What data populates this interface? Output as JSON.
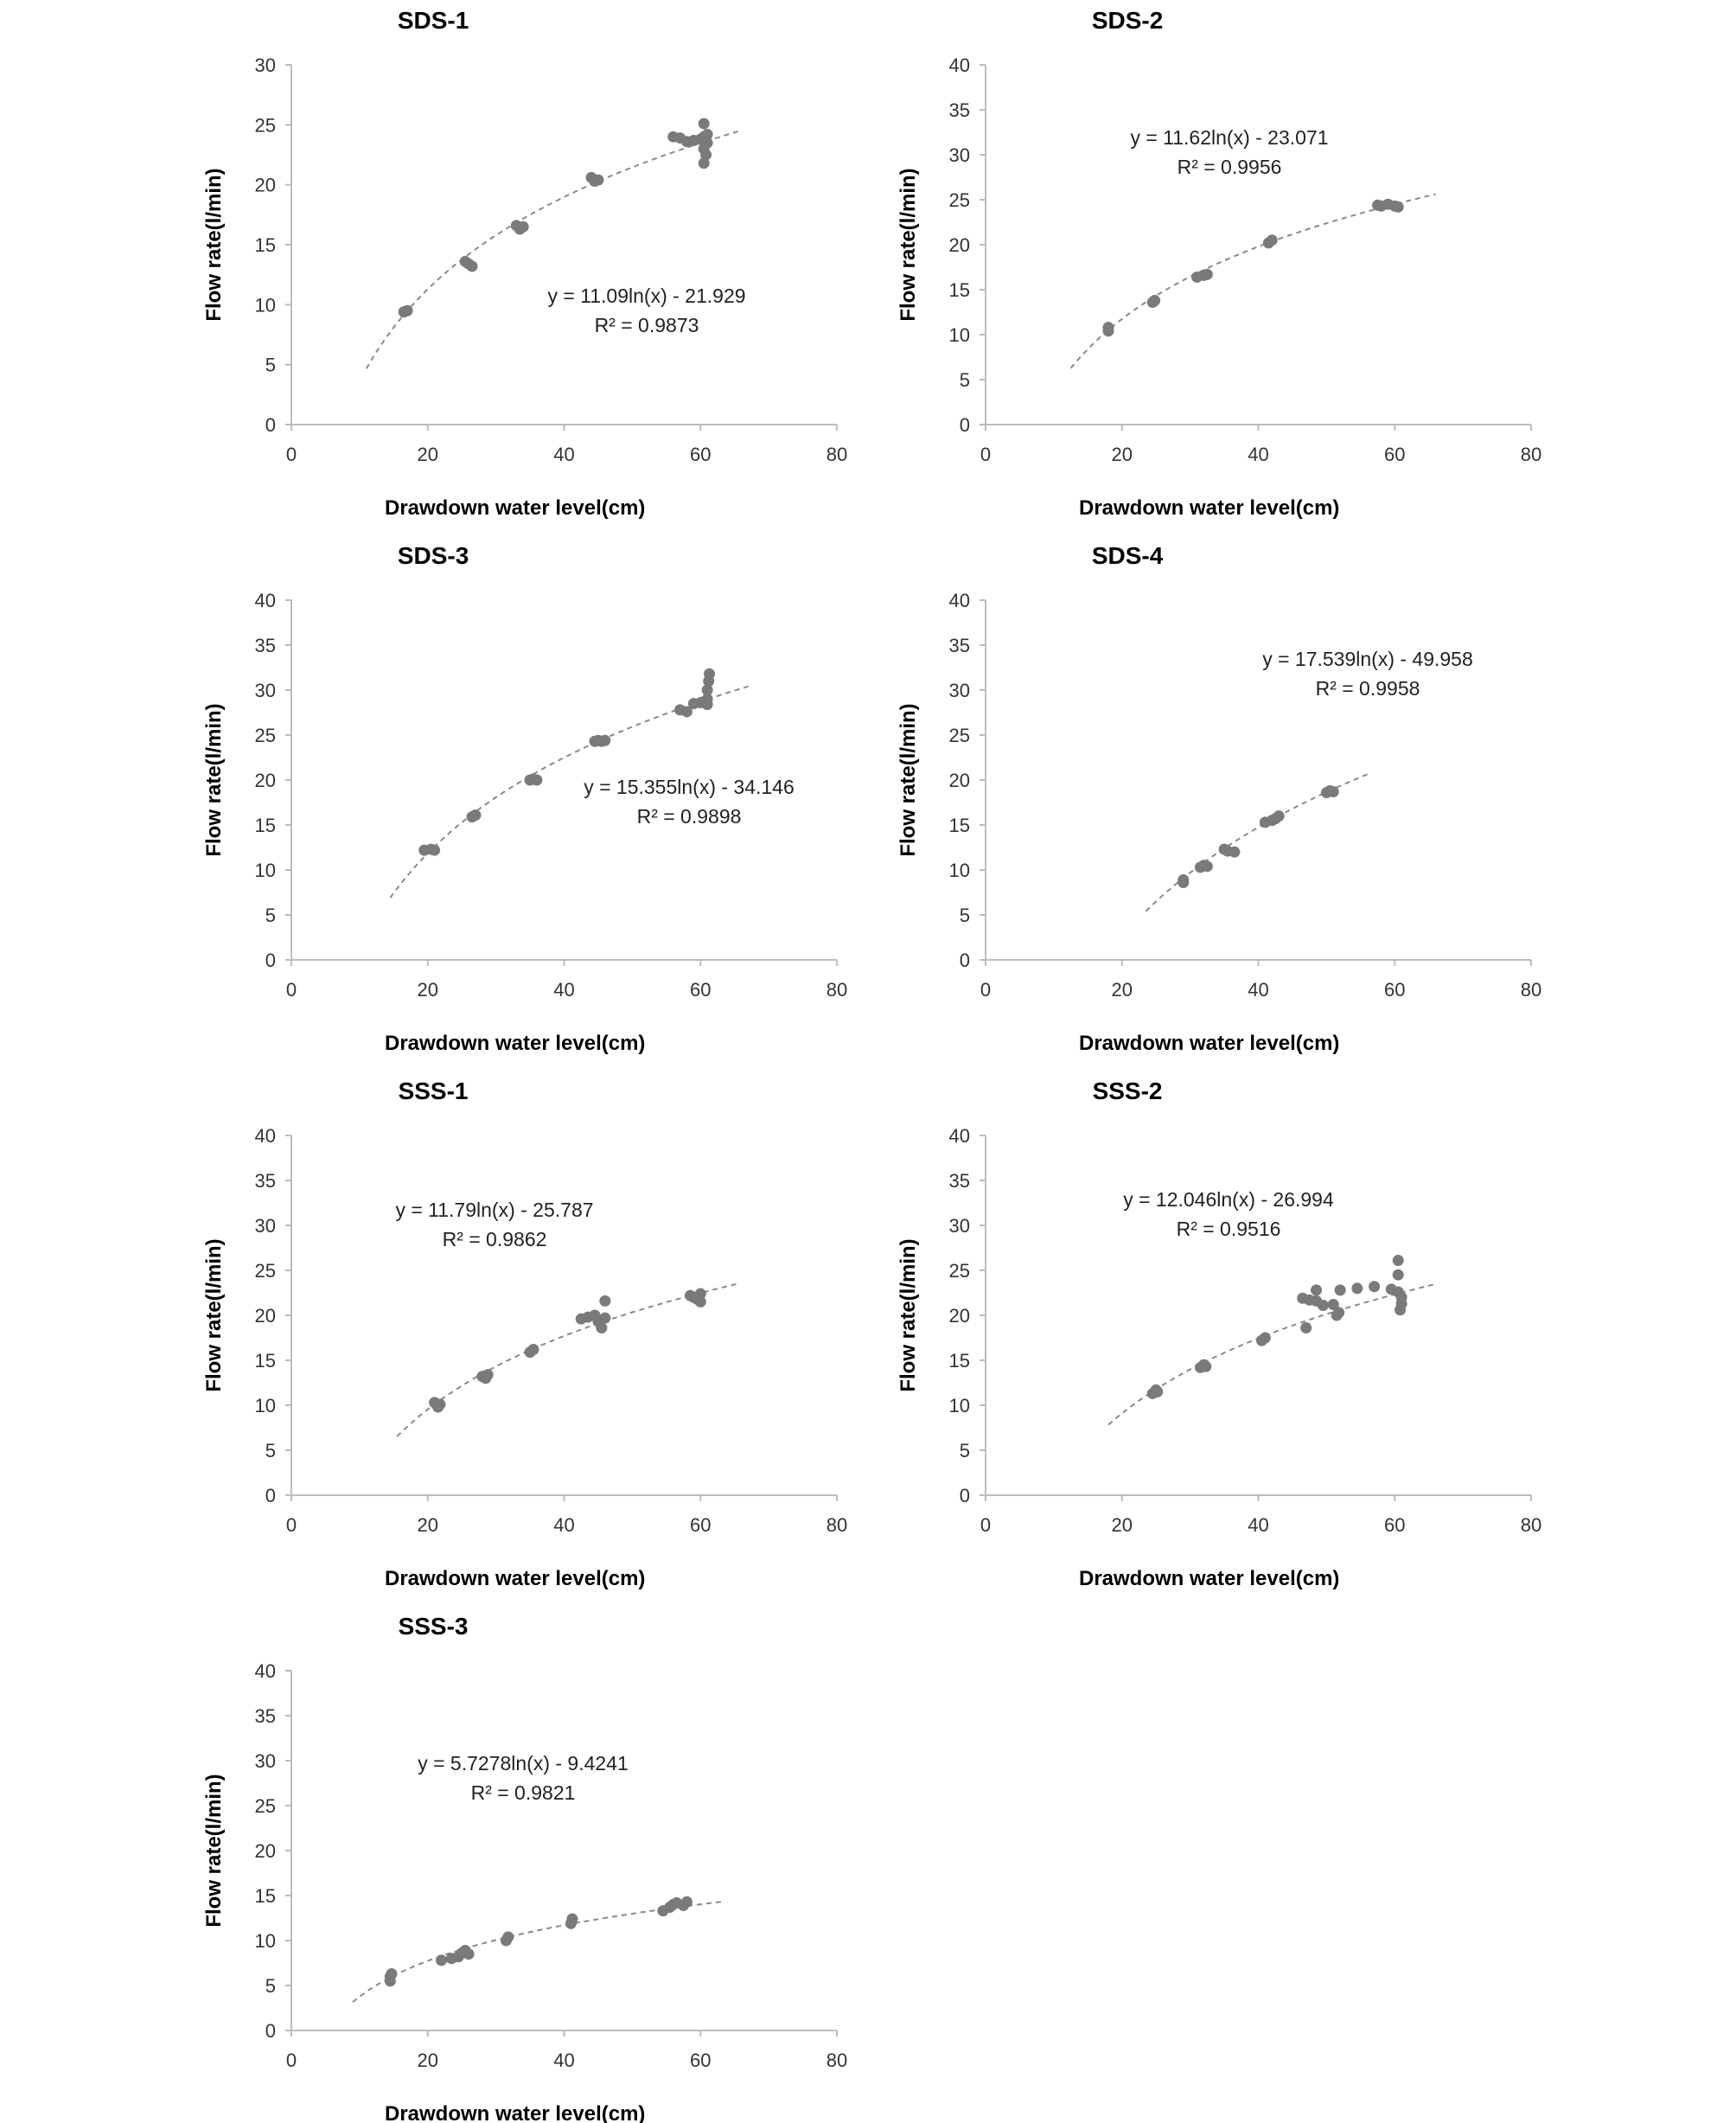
{
  "chart_data": [
    {
      "type": "scatter",
      "title": "SDS-1",
      "xlabel": "Drawdown water level(cm)",
      "ylabel": "Flow rate(l/min)",
      "xlim": [
        0,
        80
      ],
      "ylim": [
        0,
        30
      ],
      "xticks": [
        "0",
        "20",
        "40",
        "60",
        "80"
      ],
      "yticks": [
        "0",
        "5",
        "10",
        "15",
        "20",
        "25",
        "30"
      ],
      "equation": "y = 11.09ln(x) - 21.929",
      "r2": "R² = 0.9873",
      "trend": {
        "a": 11.09,
        "b": -21.929,
        "x_range": [
          11,
          66
        ]
      },
      "points": [
        [
          17,
          9.5
        ],
        [
          16.5,
          9.4
        ],
        [
          25.5,
          13.6
        ],
        [
          26,
          13.4
        ],
        [
          26.5,
          13.2
        ],
        [
          33,
          16.6
        ],
        [
          33.5,
          16.3
        ],
        [
          34,
          16.5
        ],
        [
          44,
          20.6
        ],
        [
          44.5,
          20.3
        ],
        [
          45,
          20.4
        ],
        [
          56,
          24
        ],
        [
          57,
          23.9
        ],
        [
          58,
          23.6
        ],
        [
          59,
          23.7
        ],
        [
          60,
          23.8
        ],
        [
          60.5,
          24
        ],
        [
          61,
          24.2
        ],
        [
          60.5,
          25.1
        ],
        [
          60.5,
          23
        ],
        [
          60.8,
          22.5
        ],
        [
          60.5,
          21.8
        ],
        [
          61,
          23.5
        ]
      ],
      "grid": false
    },
    {
      "type": "scatter",
      "title": "SDS-2",
      "xlabel": "Drawdown water level(cm)",
      "ylabel": "Flow rate(l/min)",
      "xlim": [
        0,
        80
      ],
      "ylim": [
        0,
        40
      ],
      "xticks": [
        "0",
        "20",
        "40",
        "60",
        "80"
      ],
      "yticks": [
        "0",
        "5",
        "10",
        "15",
        "20",
        "25",
        "30",
        "35",
        "40"
      ],
      "equation": "y = 11.62ln(x) - 23.071",
      "r2": "R² = 0.9956",
      "trend": {
        "a": 11.62,
        "b": -23.071,
        "x_range": [
          12.5,
          66
        ]
      },
      "points": [
        [
          18,
          10.4
        ],
        [
          18,
          10.8
        ],
        [
          24.5,
          13.6
        ],
        [
          24.8,
          13.8
        ],
        [
          31,
          16.4
        ],
        [
          32,
          16.6
        ],
        [
          32.5,
          16.7
        ],
        [
          41.5,
          20.2
        ],
        [
          42,
          20.5
        ],
        [
          57.5,
          24.4
        ],
        [
          58,
          24.3
        ],
        [
          59,
          24.5
        ],
        [
          60,
          24.3
        ],
        [
          60.5,
          24.2
        ]
      ],
      "grid": false
    },
    {
      "type": "scatter",
      "title": "SDS-3",
      "xlabel": "Drawdown water level(cm)",
      "ylabel": "Flow rate(l/min)",
      "xlim": [
        0,
        80
      ],
      "ylim": [
        0,
        40
      ],
      "xticks": [
        "0",
        "20",
        "40",
        "60",
        "80"
      ],
      "yticks": [
        "0",
        "5",
        "10",
        "15",
        "20",
        "25",
        "30",
        "35",
        "40"
      ],
      "equation": "y = 15.355ln(x) - 34.146",
      "r2": "R² = 0.9898",
      "trend": {
        "a": 15.355,
        "b": -34.146,
        "x_range": [
          14.5,
          67
        ]
      },
      "points": [
        [
          19.5,
          12.2
        ],
        [
          20.5,
          12.3
        ],
        [
          21,
          12.2
        ],
        [
          26.5,
          15.9
        ],
        [
          27,
          16.1
        ],
        [
          35,
          20
        ],
        [
          35.5,
          20.1
        ],
        [
          36,
          20
        ],
        [
          44.5,
          24.3
        ],
        [
          45,
          24.4
        ],
        [
          45.5,
          24.3
        ],
        [
          46,
          24.4
        ],
        [
          57,
          27.8
        ],
        [
          58,
          27.6
        ],
        [
          59,
          28.5
        ],
        [
          60,
          28.6
        ],
        [
          60.5,
          28.7
        ],
        [
          61,
          29
        ],
        [
          61,
          30
        ],
        [
          61.2,
          31
        ],
        [
          61.3,
          31.8
        ],
        [
          61,
          28.4
        ]
      ],
      "grid": false
    },
    {
      "type": "scatter",
      "title": "SDS-4",
      "xlabel": "Drawdown water level(cm)",
      "ylabel": "Flow rate(l/min)",
      "xlim": [
        0,
        80
      ],
      "ylim": [
        0,
        40
      ],
      "xticks": [
        "0",
        "20",
        "40",
        "60",
        "80"
      ],
      "yticks": [
        "0",
        "5",
        "10",
        "15",
        "20",
        "25",
        "30",
        "35",
        "40"
      ],
      "equation": "y = 17.539ln(x) - 49.958",
      "r2": "R² = 0.9958",
      "trend": {
        "a": 17.539,
        "b": -49.958,
        "x_range": [
          23.5,
          56.5
        ]
      },
      "points": [
        [
          29,
          8.6
        ],
        [
          29,
          8.9
        ],
        [
          31.5,
          10.3
        ],
        [
          32,
          10.5
        ],
        [
          32.5,
          10.4
        ],
        [
          35,
          12.3
        ],
        [
          35.5,
          12.1
        ],
        [
          36.5,
          12
        ],
        [
          41,
          15.3
        ],
        [
          42,
          15.5
        ],
        [
          42.5,
          15.7
        ],
        [
          43,
          16
        ],
        [
          50,
          18.6
        ],
        [
          50.5,
          18.8
        ],
        [
          51,
          18.7
        ]
      ],
      "grid": false
    },
    {
      "type": "scatter",
      "title": "SSS-1",
      "xlabel": "Drawdown water level(cm)",
      "ylabel": "Flow rate(l/min)",
      "xlim": [
        0,
        80
      ],
      "ylim": [
        0,
        40
      ],
      "xticks": [
        "0",
        "20",
        "40",
        "60",
        "80"
      ],
      "yticks": [
        "0",
        "5",
        "10",
        "15",
        "20",
        "25",
        "30",
        "35",
        "40"
      ],
      "equation": "y = 11.79ln(x) - 25.787",
      "r2": "R² = 0.9862",
      "trend": {
        "a": 11.79,
        "b": -25.787,
        "x_range": [
          15.5,
          65.5
        ]
      },
      "points": [
        [
          21,
          10.3
        ],
        [
          21.5,
          9.8
        ],
        [
          21.8,
          10.1
        ],
        [
          28,
          13.2
        ],
        [
          28.5,
          13
        ],
        [
          28.8,
          13.4
        ],
        [
          35,
          15.9
        ],
        [
          35.5,
          16.2
        ],
        [
          42.5,
          19.6
        ],
        [
          43.5,
          19.8
        ],
        [
          44.5,
          20
        ],
        [
          45,
          19.3
        ],
        [
          45.5,
          18.6
        ],
        [
          46,
          19.7
        ],
        [
          46,
          21.6
        ],
        [
          58.5,
          22.2
        ],
        [
          59,
          22
        ],
        [
          59.5,
          21.8
        ],
        [
          60,
          22.4
        ],
        [
          60,
          21.5
        ]
      ],
      "grid": false
    },
    {
      "type": "scatter",
      "title": "SSS-2",
      "xlabel": "Drawdown water level(cm)",
      "ylabel": "Flow rate(l/min)",
      "xlim": [
        0,
        80
      ],
      "ylim": [
        0,
        40
      ],
      "xticks": [
        "0",
        "20",
        "40",
        "60",
        "80"
      ],
      "yticks": [
        "0",
        "5",
        "10",
        "15",
        "20",
        "25",
        "30",
        "35",
        "40"
      ],
      "equation": "y = 12.046ln(x) - 26.994",
      "r2": "R² = 0.9516",
      "trend": {
        "a": 12.046,
        "b": -26.994,
        "x_range": [
          18,
          66
        ]
      },
      "points": [
        [
          24.5,
          11.3
        ],
        [
          25,
          11.7
        ],
        [
          25.2,
          11.5
        ],
        [
          31.5,
          14.2
        ],
        [
          32,
          14.5
        ],
        [
          32.3,
          14.3
        ],
        [
          40.5,
          17.2
        ],
        [
          41,
          17.5
        ],
        [
          46.5,
          21.9
        ],
        [
          47.5,
          21.7
        ],
        [
          47,
          18.6
        ],
        [
          48.5,
          21.6
        ],
        [
          48.5,
          22.8
        ],
        [
          49.5,
          21.1
        ],
        [
          51,
          21.2
        ],
        [
          51.5,
          20
        ],
        [
          51.8,
          20.3
        ],
        [
          52,
          22.8
        ],
        [
          54.5,
          23
        ],
        [
          57,
          23.2
        ],
        [
          59.5,
          22.9
        ],
        [
          60.5,
          26.1
        ],
        [
          60.5,
          24.5
        ],
        [
          60.5,
          22.6
        ],
        [
          61,
          22
        ],
        [
          61,
          21.3
        ],
        [
          60.8,
          20.6
        ]
      ],
      "grid": false
    },
    {
      "type": "scatter",
      "title": "SSS-3",
      "xlabel": "Drawdown water level(cm)",
      "ylabel": "Flow rate(l/min)",
      "xlim": [
        0,
        80
      ],
      "ylim": [
        0,
        40
      ],
      "xticks": [
        "0",
        "20",
        "40",
        "60",
        "80"
      ],
      "yticks": [
        "0",
        "5",
        "10",
        "15",
        "20",
        "25",
        "30",
        "35",
        "40"
      ],
      "equation": "y = 5.7278ln(x) - 9.4241",
      "r2": "R² = 0.9821",
      "trend": {
        "a": 5.7278,
        "b": -9.4241,
        "x_range": [
          9,
          63
        ]
      },
      "points": [
        [
          14.5,
          5.5
        ],
        [
          14.5,
          6
        ],
        [
          14.7,
          6.3
        ],
        [
          22,
          7.8
        ],
        [
          23.5,
          8
        ],
        [
          24.5,
          8.2
        ],
        [
          25,
          8.6
        ],
        [
          25.5,
          8.9
        ],
        [
          26,
          8.5
        ],
        [
          31.5,
          10
        ],
        [
          31.8,
          10.4
        ],
        [
          41,
          11.9
        ],
        [
          41.2,
          12.4
        ],
        [
          54.5,
          13.3
        ],
        [
          55.5,
          13.7
        ],
        [
          56,
          14
        ],
        [
          56.5,
          14.2
        ],
        [
          57.5,
          13.9
        ],
        [
          58,
          14.3
        ]
      ],
      "grid": false
    }
  ],
  "colors": {
    "points": "#7a7a7a",
    "trendline": "#8a8a8a",
    "axis": "#bdbdbd",
    "text": "#000000"
  }
}
